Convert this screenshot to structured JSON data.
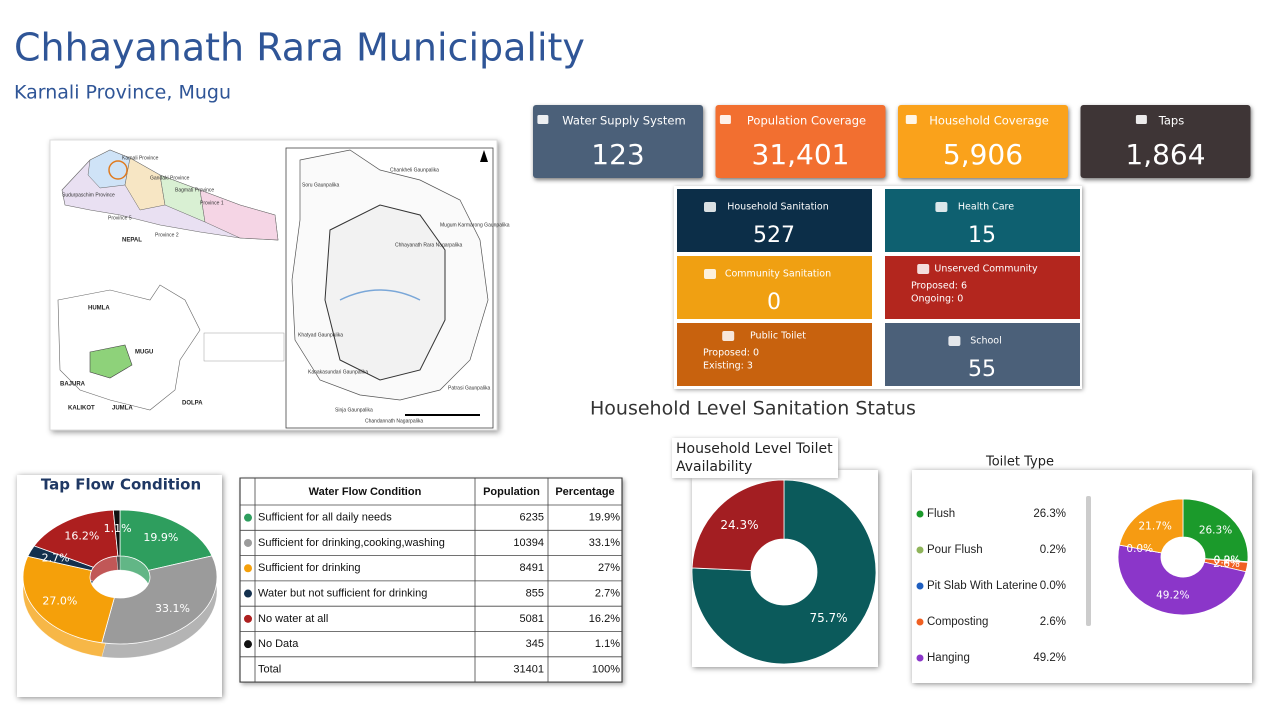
{
  "header": {
    "title": "Chhayanath Rara Municipality",
    "subtitle": "Karnali Province, Mugu"
  },
  "map": {
    "labels": [
      "Karnali Province",
      "Gandaki Province",
      "Bagmati Province",
      "Province 1",
      "Sudurpaschim Province",
      "Province 5",
      "Province 2",
      "NEPAL",
      "HUMLA",
      "MUGU",
      "BAJURA",
      "KALIKOT",
      "JUMLA",
      "DOLPA",
      "Soru Gaunpalika",
      "Chankheli Gaunpalika",
      "Mugum Karmarong Gaunpalika",
      "Chhayanath Rara Nagarpalika",
      "Khatyad Gaunpalika",
      "Kanakasundari Gaunpalika",
      "Patrasi Gaunpalika",
      "Sinja Gaunpalika",
      "Chandannath Nagarpalika"
    ]
  },
  "cards": [
    {
      "label": "Water Supply System",
      "value": "123",
      "color": "#4b6079"
    },
    {
      "label": "Population Coverage",
      "value": "31,401",
      "color": "#f26f30"
    },
    {
      "label": "Household Coverage",
      "value": "5,906",
      "color": "#faa21b"
    },
    {
      "label": "Taps",
      "value": "1,864",
      "color": "#3e3536"
    }
  ],
  "sanitation_cards": [
    {
      "label": "Household Sanitation",
      "value": "527",
      "color": "#0c2e48"
    },
    {
      "label": "Health Care",
      "value": "15",
      "color": "#0e6070"
    },
    {
      "label": "Community Sanitation",
      "value": "0",
      "color": "#f0a012"
    },
    {
      "label": "Unserved Community",
      "details": [
        "Proposed: 6",
        "Ongoing: 0"
      ],
      "color": "#b3261e"
    },
    {
      "label": "Public Toilet",
      "details": [
        "Proposed: 0",
        "Existing: 3"
      ],
      "color": "#c8620e"
    },
    {
      "label": "School",
      "value": "55",
      "color": "#4b6079"
    }
  ],
  "sanitation_title": "Household Level Sanitation Status",
  "tap_flow": {
    "type": "pie",
    "title": "Tap Flow Condition",
    "categories": [
      "Sufficient for all daily needs",
      "Sufficient for drinking,cooking,washing",
      "Sufficient for drinking",
      "Water but not sufficient for drinking",
      "No water at all",
      "No Data"
    ],
    "values": [
      19.9,
      33.1,
      27.0,
      2.7,
      16.2,
      1.1
    ],
    "value_labels": [
      "19.9%",
      "33.1%",
      "27.0%",
      "2.7%",
      "16.2%",
      "1.1%"
    ],
    "colors": [
      "#2e9e5e",
      "#9b9b9b",
      "#f5a00a",
      "#13304e",
      "#ad1f1f",
      "#111111"
    ]
  },
  "table": {
    "header": [
      "Water Flow Condition",
      "Population",
      "Percentage"
    ],
    "rows": [
      [
        "Sufficient for all daily needs",
        "6235",
        "19.9%"
      ],
      [
        "Sufficient for drinking,cooking,washing",
        "10394",
        "33.1%"
      ],
      [
        "Sufficient for drinking",
        "8491",
        "27%"
      ],
      [
        "Water but not sufficient for drinking",
        "855",
        "2.7%"
      ],
      [
        "No water at all",
        "5081",
        "16.2%"
      ],
      [
        "No Data",
        "345",
        "1.1%"
      ],
      [
        "Total",
        "31401",
        "100%"
      ]
    ]
  },
  "toilet_availability": {
    "type": "pie",
    "title": "Household Level Toilet Availability",
    "values": [
      75.7,
      24.3
    ],
    "value_labels": [
      "75.7%",
      "24.3%"
    ],
    "colors": [
      "#0b5a5b",
      "#a31e22"
    ]
  },
  "toilet_type": {
    "type": "pie",
    "title": "Toilet Type",
    "categories": [
      "Flush",
      "Pour Flush",
      "Pit Slab With Laterine",
      "Composting",
      "Hanging",
      null,
      null
    ],
    "values": [
      26.3,
      0.2,
      0.0,
      2.6,
      49.2,
      0.0,
      21.7
    ],
    "value_labels": [
      "26.3%",
      "0.2%",
      "0.0%",
      "2.6%",
      "49.2%",
      "0.0%",
      "21.7%"
    ],
    "colors": [
      "#1b9a2b",
      "#8fb45a",
      "#1f5fc0",
      "#f06022",
      "#8b36c9",
      "#e0559a",
      "#f69b12"
    ]
  }
}
